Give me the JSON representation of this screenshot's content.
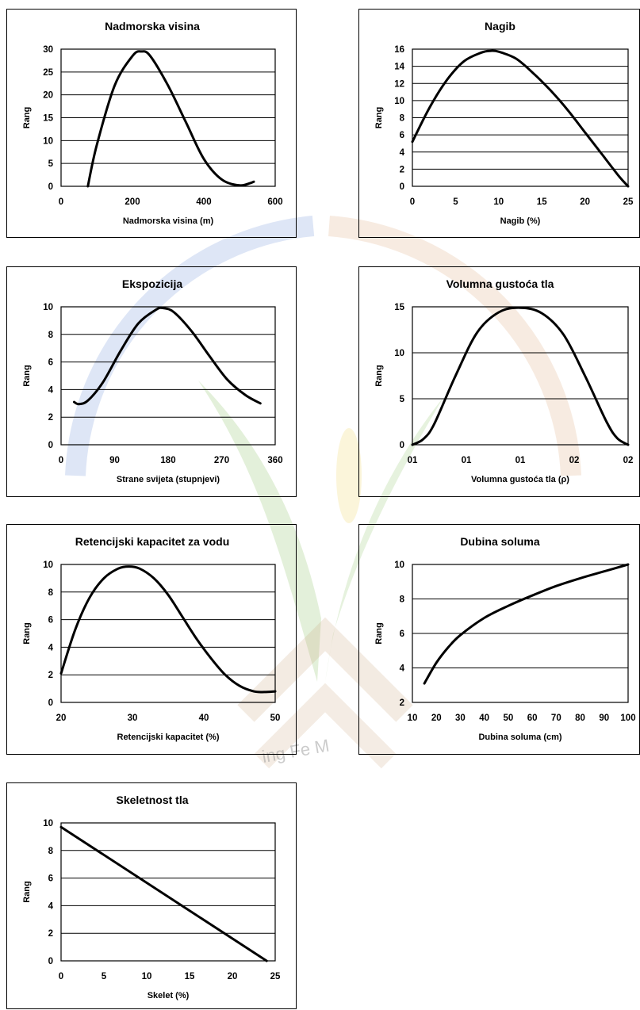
{
  "watermark": {
    "text": "ing Fe M",
    "colors": {
      "blue": "#6a8fd6",
      "orange": "#d9a577",
      "green": "#8fc36a",
      "brown": "#c9a27a",
      "yellow": "#f1d66a"
    }
  },
  "chart_data": [
    {
      "type": "line",
      "title": "Nadmorska visina",
      "xlabel": "Nadmorska visina (m)",
      "ylabel": "Rang",
      "xlim": [
        0,
        600
      ],
      "ylim": [
        0,
        30
      ],
      "xticks": [
        "0",
        "200",
        "400",
        "600"
      ],
      "yticks": [
        "0",
        "5",
        "10",
        "15",
        "20",
        "25",
        "30"
      ],
      "grid": "horizontal",
      "series": [
        {
          "x": [
            75,
            100,
            150,
            200,
            225,
            250,
            300,
            350,
            400,
            450,
            500,
            530,
            540
          ],
          "y": [
            0,
            9,
            22,
            28.5,
            29.5,
            28.5,
            22,
            14,
            6,
            1.5,
            0.2,
            0.7,
            1
          ]
        }
      ]
    },
    {
      "type": "line",
      "title": "Nagib",
      "xlabel": "Nagib (%)",
      "ylabel": "Rang",
      "xlim": [
        0,
        25
      ],
      "ylim": [
        0,
        16
      ],
      "xticks": [
        "0",
        "5",
        "10",
        "15",
        "20",
        "25"
      ],
      "yticks": [
        "0",
        "2",
        "4",
        "6",
        "8",
        "10",
        "12",
        "14",
        "16"
      ],
      "grid": "horizontal",
      "series": [
        {
          "x": [
            0,
            2,
            4,
            6,
            8,
            9,
            10,
            12,
            14,
            16,
            18,
            20,
            22,
            24,
            25
          ],
          "y": [
            5.2,
            9.2,
            12.4,
            14.6,
            15.6,
            15.8,
            15.7,
            14.9,
            13.2,
            11.2,
            8.9,
            6.3,
            3.7,
            1.1,
            0
          ]
        }
      ]
    },
    {
      "type": "line",
      "title": "Ekspozicija",
      "xlabel": "Strane svijeta (stupnjevi)",
      "ylabel": "Rang",
      "xlim": [
        0,
        360
      ],
      "ylim": [
        0,
        10
      ],
      "xticks": [
        "0",
        "90",
        "180",
        "270",
        "360"
      ],
      "yticks": [
        "0",
        "2",
        "4",
        "6",
        "8",
        "10"
      ],
      "grid": "horizontal",
      "series": [
        {
          "x": [
            22,
            30,
            45,
            70,
            100,
            130,
            160,
            172,
            190,
            220,
            250,
            280,
            310,
            335
          ],
          "y": [
            3.1,
            2.95,
            3.2,
            4.5,
            6.8,
            8.8,
            9.8,
            9.9,
            9.6,
            8.2,
            6.4,
            4.7,
            3.6,
            3.0
          ]
        }
      ]
    },
    {
      "type": "line",
      "title": "Volumna gustoća tla",
      "xlabel": "Volumna gustoća tla (ρ)",
      "ylabel": "Rang",
      "xlim": [
        0,
        1
      ],
      "ylim": [
        0,
        15
      ],
      "xticks": [
        "01",
        "01",
        "01",
        "02",
        "02"
      ],
      "yticks": [
        "0",
        "5",
        "10",
        "15"
      ],
      "grid": "horizontal",
      "series": [
        {
          "x": [
            0,
            0.05,
            0.1,
            0.2,
            0.3,
            0.4,
            0.5,
            0.6,
            0.7,
            0.8,
            0.9,
            0.95,
            1
          ],
          "y": [
            0,
            0.6,
            2.2,
            7.5,
            12.2,
            14.4,
            14.9,
            14.3,
            12.0,
            7.5,
            2.5,
            0.7,
            0
          ]
        }
      ]
    },
    {
      "type": "line",
      "title": "Retencijski kapacitet za vodu",
      "xlabel": "Retencijski kapacitet (%)",
      "ylabel": "Rang",
      "xlim": [
        20,
        50
      ],
      "ylim": [
        0,
        10
      ],
      "xticks": [
        "20",
        "30",
        "40",
        "50"
      ],
      "yticks": [
        "0",
        "2",
        "4",
        "6",
        "8",
        "10"
      ],
      "grid": "horizontal",
      "series": [
        {
          "x": [
            20,
            22,
            24,
            26,
            28,
            29.5,
            31,
            33,
            35,
            37,
            39,
            41,
            43,
            45,
            47,
            48.5,
            50
          ],
          "y": [
            2.1,
            5.3,
            7.6,
            9.0,
            9.7,
            9.85,
            9.7,
            9.0,
            7.8,
            6.2,
            4.6,
            3.2,
            2.0,
            1.2,
            0.8,
            0.75,
            0.8
          ]
        }
      ]
    },
    {
      "type": "line",
      "title": "Dubina soluma",
      "xlabel": "Dubina soluma (cm)",
      "ylabel": "Rang",
      "xlim": [
        10,
        100
      ],
      "ylim": [
        2,
        10
      ],
      "xticks": [
        "10",
        "20",
        "30",
        "40",
        "50",
        "60",
        "70",
        "80",
        "90",
        "100"
      ],
      "yticks": [
        "2",
        "4",
        "6",
        "8",
        "10"
      ],
      "grid": "horizontal",
      "series": [
        {
          "x": [
            15,
            20,
            25,
            30,
            40,
            50,
            60,
            70,
            80,
            90,
            100
          ],
          "y": [
            3.1,
            4.3,
            5.2,
            5.9,
            6.9,
            7.6,
            8.2,
            8.75,
            9.2,
            9.6,
            10.0
          ]
        }
      ]
    },
    {
      "type": "line",
      "title": "Skeletnost tla",
      "xlabel": "Skelet (%)",
      "ylabel": "Rang",
      "xlim": [
        0,
        25
      ],
      "ylim": [
        0,
        10
      ],
      "xticks": [
        "0",
        "5",
        "10",
        "15",
        "20",
        "25"
      ],
      "yticks": [
        "0",
        "2",
        "4",
        "6",
        "8",
        "10"
      ],
      "grid": "horizontal",
      "series": [
        {
          "x": [
            0,
            24
          ],
          "y": [
            9.7,
            0
          ]
        }
      ]
    }
  ]
}
